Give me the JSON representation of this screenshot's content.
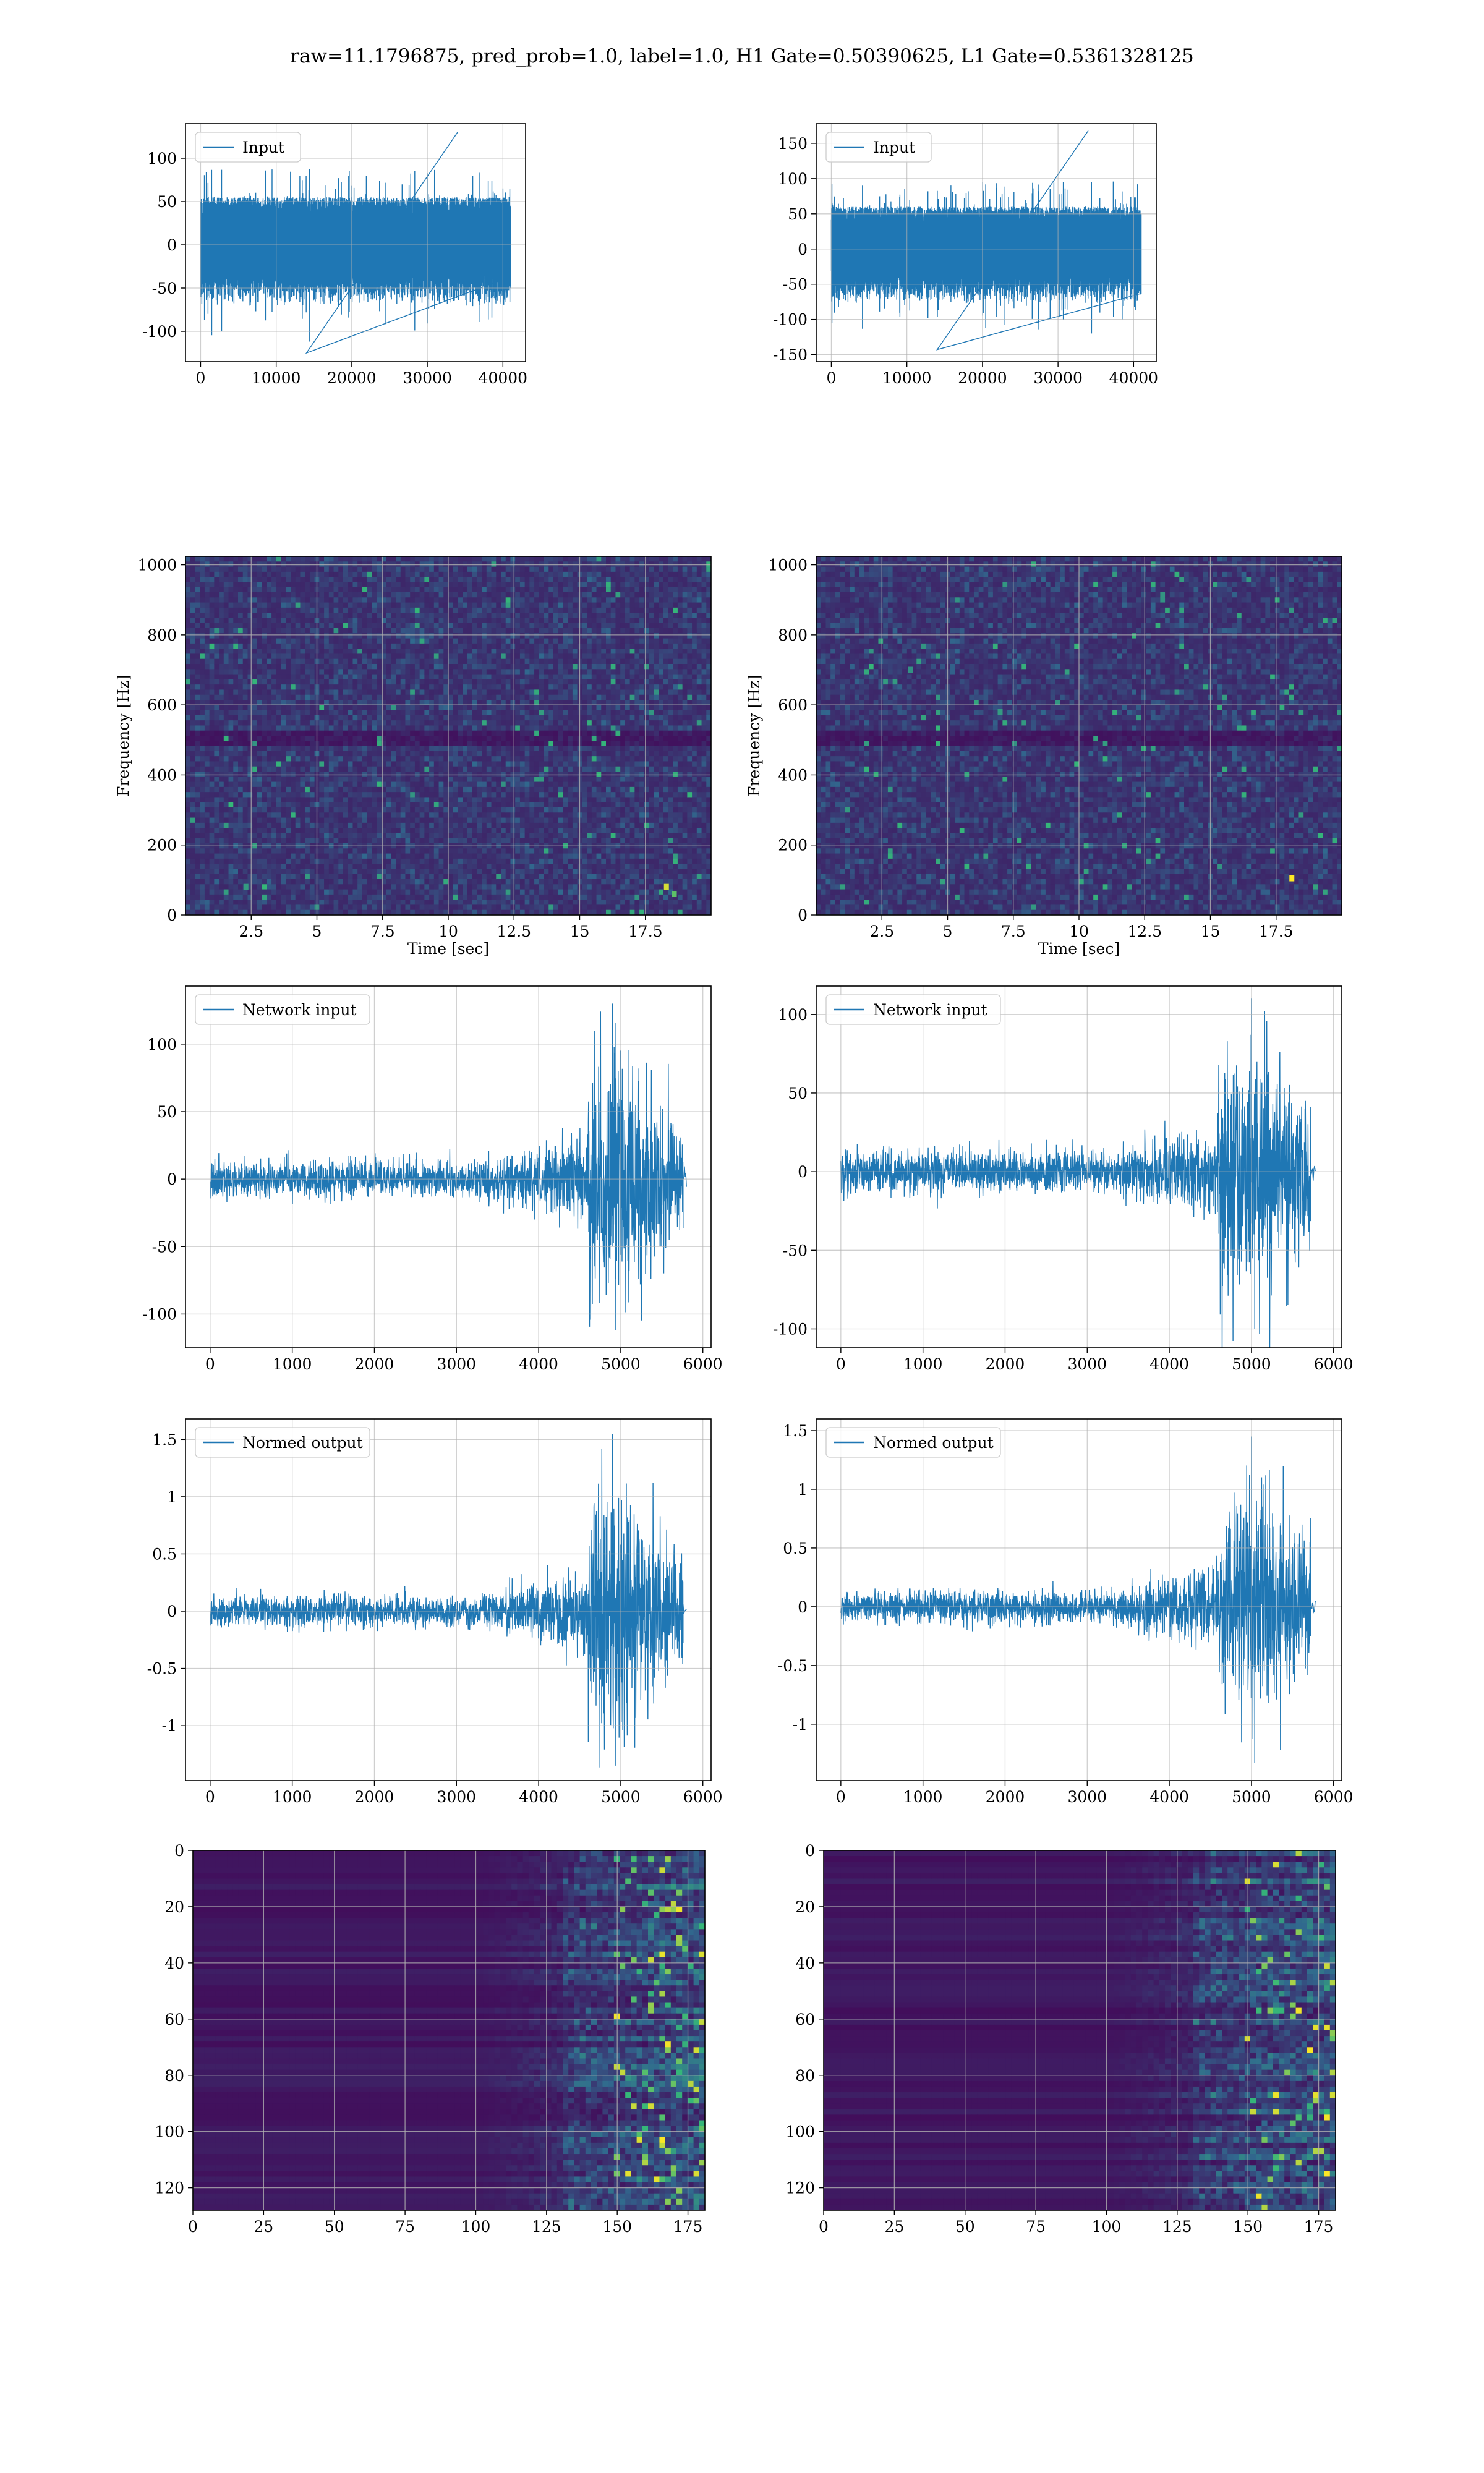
{
  "figure": {
    "title": "raw=11.1796875, pred_prob=1.0, label=1.0, H1 Gate=0.50390625, L1 Gate=0.5361328125"
  },
  "colors": {
    "line": "#1f77b4",
    "grid": "#b0b0b0",
    "spec_low": "#440154",
    "spec_mid": "#31688e",
    "spec_high": "#35b779",
    "spec_peak": "#fde725"
  },
  "chart_data": [
    {
      "id": "input_h1",
      "type": "line",
      "legend": "Input",
      "xlim": [
        -2000,
        43000
      ],
      "ylim": [
        -135,
        140
      ],
      "xticks": [
        0,
        10000,
        20000,
        30000,
        40000
      ],
      "yticks": [
        -100,
        -50,
        0,
        50,
        100
      ],
      "n": 40960,
      "envelope": 55,
      "spike_max": 130,
      "spike_min": -125,
      "end_x": 41000
    },
    {
      "id": "input_l1",
      "type": "line",
      "legend": "Input",
      "xlim": [
        -2000,
        43000
      ],
      "ylim": [
        -160,
        178
      ],
      "xticks": [
        0,
        10000,
        20000,
        30000,
        40000
      ],
      "yticks": [
        -150,
        -100,
        -50,
        0,
        50,
        100,
        150
      ],
      "n": 40960,
      "envelope": 60,
      "spike_max": 168,
      "spike_min": -143,
      "end_x": 41000
    },
    {
      "id": "spec_h1",
      "type": "heatmap",
      "xlabel": "Time [sec]",
      "ylabel": "Frequency [Hz]",
      "xlim": [
        0,
        20
      ],
      "ylim": [
        0,
        1024
      ],
      "xticks": [
        2.5,
        5.0,
        7.5,
        10.0,
        12.5,
        15.0,
        17.5
      ],
      "yticks": [
        0,
        200,
        400,
        600,
        800,
        1000
      ]
    },
    {
      "id": "spec_l1",
      "type": "heatmap",
      "xlabel": "Time [sec]",
      "ylabel": "Frequency [Hz]",
      "xlim": [
        0,
        20
      ],
      "ylim": [
        0,
        1024
      ],
      "xticks": [
        2.5,
        5.0,
        7.5,
        10.0,
        12.5,
        15.0,
        17.5
      ],
      "yticks": [
        0,
        200,
        400,
        600,
        800,
        1000
      ]
    },
    {
      "id": "net_h1",
      "type": "line",
      "legend": "Network input",
      "xlim": [
        -300,
        6100
      ],
      "ylim": [
        -125,
        143
      ],
      "xticks": [
        0,
        1000,
        2000,
        3000,
        4000,
        5000,
        6000
      ],
      "yticks": [
        -100,
        -50,
        0,
        50,
        100
      ],
      "n": 5800,
      "end_x": 5760,
      "tail_x": 5800,
      "peak_x": 4900,
      "base_amp": 12,
      "peak_amp": 80,
      "max": 130,
      "min": -112
    },
    {
      "id": "net_l1",
      "type": "line",
      "legend": "Network input",
      "xlim": [
        -300,
        6100
      ],
      "ylim": [
        -112,
        118
      ],
      "xticks": [
        0,
        1000,
        2000,
        3000,
        4000,
        5000,
        6000
      ],
      "yticks": [
        -100,
        -50,
        0,
        50,
        100
      ],
      "n": 5800,
      "end_x": 5720,
      "tail_x": 5790,
      "peak_x": 5000,
      "base_amp": 12,
      "peak_amp": 70,
      "max": 110,
      "min": -100
    },
    {
      "id": "norm_h1",
      "type": "line",
      "legend": "Normed output",
      "xlim": [
        -300,
        6100
      ],
      "ylim": [
        -1.48,
        1.68
      ],
      "xticks": [
        0,
        1000,
        2000,
        3000,
        4000,
        5000,
        6000
      ],
      "yticks": [
        -1.0,
        -0.5,
        0.0,
        0.5,
        1.0,
        1.5
      ],
      "n": 5800,
      "end_x": 5760,
      "tail_x": 5800,
      "peak_x": 4900,
      "base_amp": 0.12,
      "peak_amp": 0.9,
      "max": 1.55,
      "min": -1.35
    },
    {
      "id": "norm_l1",
      "type": "line",
      "legend": "Normed output",
      "xlim": [
        -300,
        6100
      ],
      "ylim": [
        -1.48,
        1.6
      ],
      "xticks": [
        0,
        1000,
        2000,
        3000,
        4000,
        5000,
        6000
      ],
      "yticks": [
        -1.0,
        -0.5,
        0.0,
        0.5,
        1.0,
        1.5
      ],
      "n": 5800,
      "end_x": 5720,
      "tail_x": 5790,
      "peak_x": 5000,
      "base_amp": 0.12,
      "peak_amp": 0.85,
      "max": 1.45,
      "min": -1.33
    },
    {
      "id": "feat_h1",
      "type": "heatmap",
      "xlim": [
        0,
        181
      ],
      "ylim": [
        128,
        0
      ],
      "xticks": [
        0,
        25,
        50,
        75,
        100,
        125,
        150,
        175
      ],
      "yticks": [
        0,
        20,
        40,
        60,
        80,
        100,
        120
      ]
    },
    {
      "id": "feat_l1",
      "type": "heatmap",
      "xlim": [
        0,
        181
      ],
      "ylim": [
        128,
        0
      ],
      "xticks": [
        0,
        25,
        50,
        75,
        100,
        125,
        150,
        175
      ],
      "yticks": [
        0,
        20,
        40,
        60,
        80,
        100,
        120
      ]
    }
  ]
}
